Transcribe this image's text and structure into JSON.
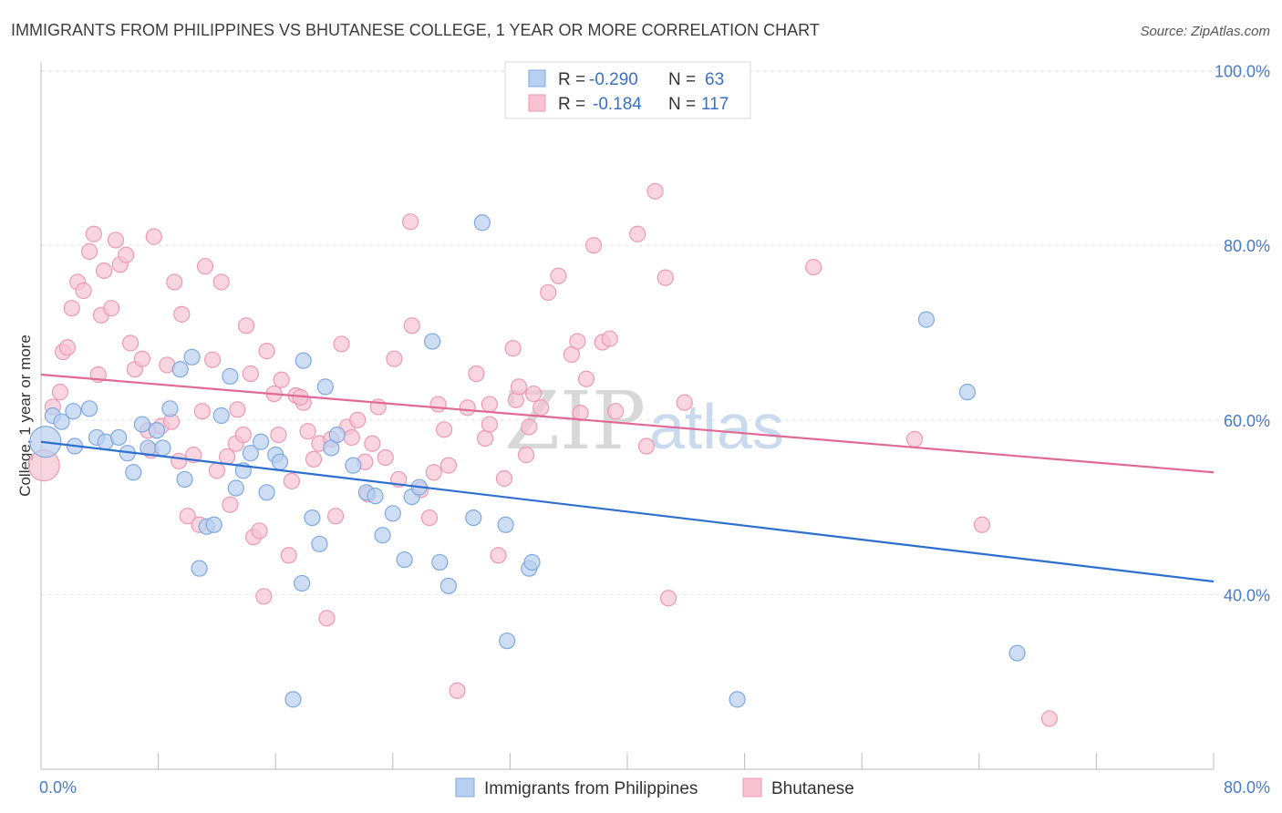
{
  "title": "IMMIGRANTS FROM PHILIPPINES VS BHUTANESE COLLEGE, 1 YEAR OR MORE CORRELATION CHART",
  "source": "Source: ZipAtlas.com",
  "watermark": {
    "zip": "ZIP",
    "atlas": "atlas"
  },
  "colors": {
    "blue_fill": "#b8d0f0",
    "blue_stroke": "#7fa8e0",
    "blue_line": "#2d6fd0",
    "pink_fill": "#f7c3d3",
    "pink_stroke": "#ec9ab4",
    "pink_line": "#e06a95",
    "grid": "#e2e2e2",
    "tick_label": "#4a7ac8"
  },
  "legend": {
    "rows": [
      {
        "r_label": "R =",
        "r_value": "-0.290",
        "n_label": "N =",
        "n_value": "63"
      },
      {
        "r_label": "R =",
        "r_value": "-0.184",
        "n_label": "N =",
        "n_value": "117"
      }
    ]
  },
  "bottom_legend": [
    "Immigrants from Philippines",
    "Bhutanese"
  ],
  "chart_data": {
    "type": "scatter",
    "title": "IMMIGRANTS FROM PHILIPPINES VS BHUTANESE COLLEGE, 1 YEAR OR MORE CORRELATION CHART",
    "xlabel": "",
    "ylabel": "College, 1 year or more",
    "xlim": [
      0,
      80
    ],
    "ylim": [
      20,
      101
    ],
    "x_tick_labels": [
      "0.0%",
      "80.0%"
    ],
    "y_ticks": [
      40,
      60,
      80,
      100
    ],
    "y_tick_labels": [
      "40.0%",
      "60.0%",
      "80.0%",
      "100.0%"
    ],
    "grid": true,
    "legend_position": "top-center",
    "series": [
      {
        "name": "Immigrants from Philippines",
        "trend": {
          "x": [
            0,
            80
          ],
          "y": [
            57.5,
            41.5
          ]
        },
        "points": [
          [
            0.3,
            57.5
          ],
          [
            0.8,
            60.5
          ],
          [
            1.4,
            59.8
          ],
          [
            2.2,
            61.0
          ],
          [
            3.3,
            61.3
          ],
          [
            2.3,
            57.0
          ],
          [
            3.8,
            58.0
          ],
          [
            4.4,
            57.5
          ],
          [
            5.3,
            58.0
          ],
          [
            5.9,
            56.2
          ],
          [
            6.3,
            54.0
          ],
          [
            6.9,
            59.5
          ],
          [
            7.3,
            56.8
          ],
          [
            7.9,
            58.8
          ],
          [
            8.3,
            56.8
          ],
          [
            8.8,
            61.3
          ],
          [
            9.5,
            65.8
          ],
          [
            9.8,
            53.2
          ],
          [
            10.3,
            67.2
          ],
          [
            10.8,
            43.0
          ],
          [
            11.3,
            47.8
          ],
          [
            11.8,
            48.0
          ],
          [
            12.3,
            60.5
          ],
          [
            12.9,
            65.0
          ],
          [
            13.3,
            52.2
          ],
          [
            13.8,
            54.2
          ],
          [
            14.3,
            56.2
          ],
          [
            15.0,
            57.5
          ],
          [
            15.4,
            51.7
          ],
          [
            16.0,
            56.0
          ],
          [
            16.3,
            55.2
          ],
          [
            17.2,
            28.0
          ],
          [
            17.8,
            41.3
          ],
          [
            17.9,
            66.8
          ],
          [
            18.5,
            48.8
          ],
          [
            19.0,
            45.8
          ],
          [
            19.4,
            63.8
          ],
          [
            19.8,
            56.8
          ],
          [
            20.2,
            58.3
          ],
          [
            21.3,
            54.8
          ],
          [
            22.2,
            51.7
          ],
          [
            22.8,
            51.3
          ],
          [
            23.3,
            46.8
          ],
          [
            24.0,
            49.3
          ],
          [
            24.8,
            44.0
          ],
          [
            25.3,
            51.2
          ],
          [
            25.8,
            52.3
          ],
          [
            26.7,
            69.0
          ],
          [
            27.2,
            43.7
          ],
          [
            27.8,
            41.0
          ],
          [
            29.5,
            48.8
          ],
          [
            30.1,
            82.6
          ],
          [
            31.7,
            48.0
          ],
          [
            31.8,
            34.7
          ],
          [
            33.3,
            43.0
          ],
          [
            33.5,
            43.7
          ],
          [
            47.5,
            28.0
          ],
          [
            60.4,
            71.5
          ],
          [
            63.2,
            63.2
          ],
          [
            66.6,
            33.3
          ]
        ]
      },
      {
        "name": "Bhutanese",
        "trend": {
          "x": [
            0,
            80
          ],
          "y": [
            65.2,
            54.0
          ]
        },
        "points": [
          [
            0.2,
            54.8
          ],
          [
            0.8,
            61.5
          ],
          [
            1.3,
            63.2
          ],
          [
            1.5,
            67.8
          ],
          [
            1.8,
            68.3
          ],
          [
            2.1,
            72.8
          ],
          [
            2.5,
            75.8
          ],
          [
            2.9,
            74.8
          ],
          [
            3.3,
            79.3
          ],
          [
            3.6,
            81.3
          ],
          [
            4.1,
            72.0
          ],
          [
            4.3,
            77.1
          ],
          [
            4.8,
            72.8
          ],
          [
            5.1,
            80.6
          ],
          [
            5.4,
            77.8
          ],
          [
            5.8,
            78.9
          ],
          [
            6.1,
            68.8
          ],
          [
            6.4,
            65.8
          ],
          [
            6.9,
            67.0
          ],
          [
            7.3,
            58.8
          ],
          [
            7.5,
            56.5
          ],
          [
            7.7,
            81.0
          ],
          [
            8.2,
            59.3
          ],
          [
            8.6,
            66.3
          ],
          [
            9.1,
            75.8
          ],
          [
            9.4,
            55.3
          ],
          [
            9.6,
            72.1
          ],
          [
            10.0,
            49.0
          ],
          [
            10.4,
            56.0
          ],
          [
            10.8,
            48.0
          ],
          [
            11.0,
            61.0
          ],
          [
            11.2,
            77.6
          ],
          [
            11.7,
            66.9
          ],
          [
            12.0,
            54.2
          ],
          [
            12.3,
            75.8
          ],
          [
            12.7,
            55.8
          ],
          [
            12.9,
            50.3
          ],
          [
            13.3,
            57.3
          ],
          [
            13.8,
            58.3
          ],
          [
            14.0,
            70.8
          ],
          [
            14.3,
            65.3
          ],
          [
            14.5,
            46.6
          ],
          [
            14.9,
            47.3
          ],
          [
            15.2,
            39.8
          ],
          [
            15.4,
            67.9
          ],
          [
            15.9,
            63.0
          ],
          [
            16.2,
            58.3
          ],
          [
            16.4,
            64.6
          ],
          [
            16.9,
            44.5
          ],
          [
            17.1,
            53.0
          ],
          [
            17.4,
            62.8
          ],
          [
            17.9,
            62.0
          ],
          [
            18.2,
            58.7
          ],
          [
            18.6,
            55.5
          ],
          [
            19.0,
            57.3
          ],
          [
            19.5,
            37.3
          ],
          [
            19.8,
            57.8
          ],
          [
            20.1,
            49.0
          ],
          [
            20.5,
            68.7
          ],
          [
            20.9,
            59.2
          ],
          [
            21.2,
            58.0
          ],
          [
            21.6,
            60.0
          ],
          [
            22.1,
            55.2
          ],
          [
            22.6,
            57.3
          ],
          [
            23.0,
            61.5
          ],
          [
            23.5,
            55.7
          ],
          [
            24.1,
            67.0
          ],
          [
            24.4,
            53.2
          ],
          [
            25.2,
            82.7
          ],
          [
            25.3,
            70.8
          ],
          [
            25.9,
            52.0
          ],
          [
            26.5,
            48.8
          ],
          [
            27.1,
            61.8
          ],
          [
            27.5,
            58.9
          ],
          [
            27.8,
            54.8
          ],
          [
            28.4,
            29.0
          ],
          [
            29.1,
            61.4
          ],
          [
            29.7,
            65.3
          ],
          [
            30.3,
            57.9
          ],
          [
            30.6,
            61.8
          ],
          [
            31.2,
            44.5
          ],
          [
            31.6,
            53.3
          ],
          [
            32.2,
            68.2
          ],
          [
            32.4,
            62.3
          ],
          [
            32.6,
            63.8
          ],
          [
            33.1,
            56.0
          ],
          [
            33.3,
            59.2
          ],
          [
            33.6,
            63.0
          ],
          [
            34.1,
            61.4
          ],
          [
            34.6,
            74.6
          ],
          [
            35.3,
            76.5
          ],
          [
            36.2,
            67.5
          ],
          [
            36.6,
            69.0
          ],
          [
            36.8,
            60.8
          ],
          [
            37.2,
            64.7
          ],
          [
            37.7,
            80.0
          ],
          [
            38.3,
            68.9
          ],
          [
            38.8,
            69.3
          ],
          [
            39.2,
            61.0
          ],
          [
            40.7,
            81.3
          ],
          [
            41.3,
            57.0
          ],
          [
            41.9,
            86.2
          ],
          [
            42.6,
            76.3
          ],
          [
            42.8,
            39.6
          ],
          [
            43.9,
            62.0
          ],
          [
            52.7,
            77.5
          ],
          [
            59.6,
            57.8
          ],
          [
            64.2,
            48.0
          ],
          [
            68.8,
            25.8
          ],
          [
            30.6,
            59.5
          ],
          [
            17.7,
            62.6
          ],
          [
            22.3,
            51.5
          ],
          [
            13.4,
            61.2
          ],
          [
            8.9,
            59.8
          ],
          [
            26.8,
            54.0
          ],
          [
            3.9,
            65.2
          ]
        ]
      }
    ]
  }
}
